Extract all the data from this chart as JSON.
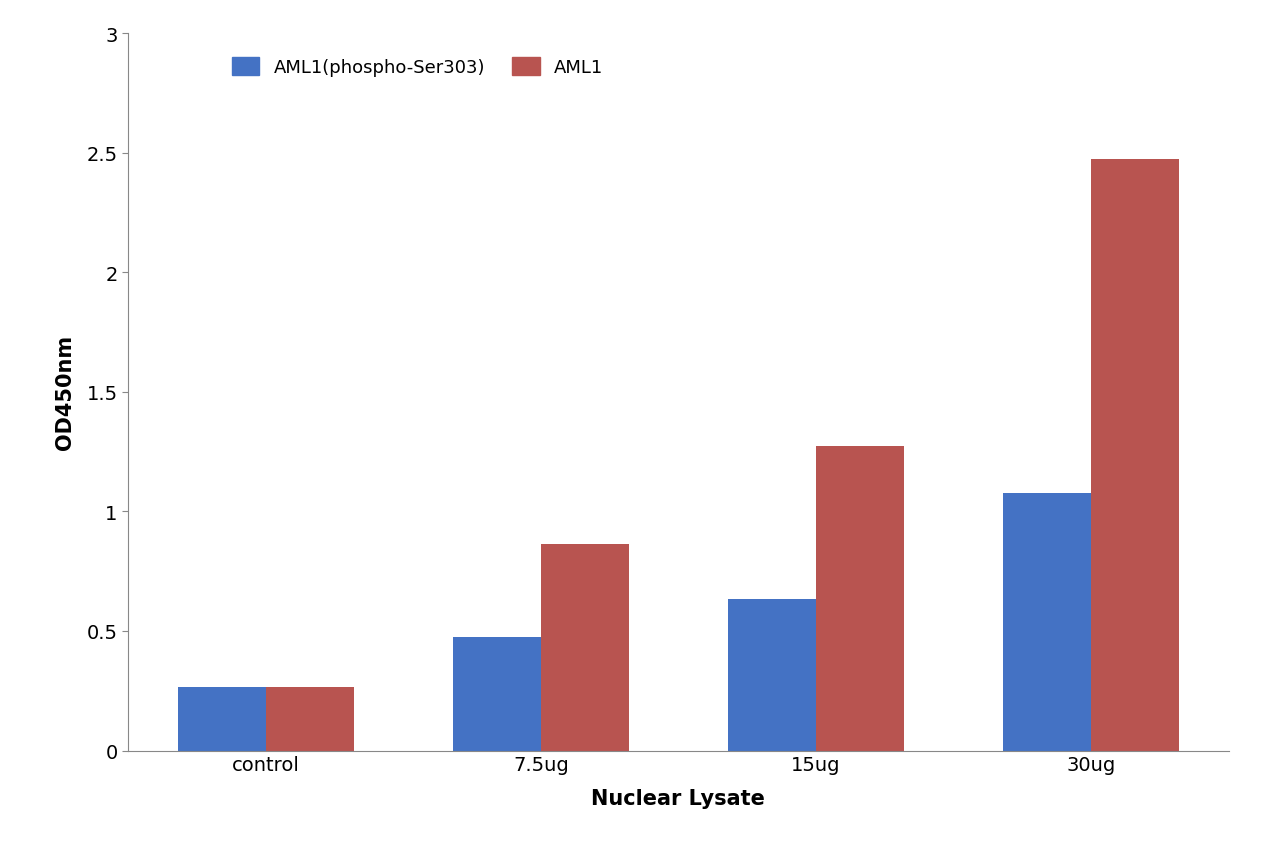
{
  "categories": [
    "control",
    "7.5ug",
    "15ug",
    "30ug"
  ],
  "series": [
    {
      "label": "AML1(phospho-Ser303)",
      "color": "#4472C4",
      "values": [
        0.265,
        0.475,
        0.635,
        1.075
      ]
    },
    {
      "label": "AML1",
      "color": "#B85450",
      "values": [
        0.265,
        0.865,
        1.275,
        2.475
      ]
    }
  ],
  "xlabel": "Nuclear Lysate",
  "ylabel": "OD450nm",
  "ylim": [
    0,
    3.0
  ],
  "yticks": [
    0,
    0.5,
    1.0,
    1.5,
    2.0,
    2.5,
    3.0
  ],
  "ytick_labels": [
    "0",
    "0.5",
    "1",
    "1.5",
    "2",
    "2.5",
    "3"
  ],
  "background_color": "#FFFFFF",
  "plot_bg_color": "#FFFFFF",
  "bar_width": 0.32,
  "xlabel_fontsize": 15,
  "ylabel_fontsize": 15,
  "tick_fontsize": 14,
  "legend_fontsize": 13
}
